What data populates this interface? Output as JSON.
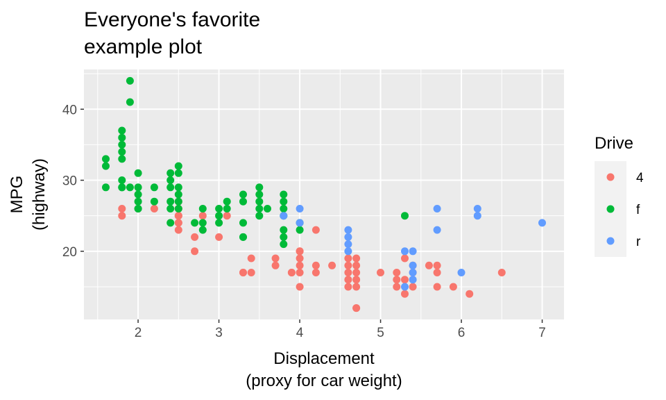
{
  "chart_data": {
    "type": "scatter",
    "title": [
      "Everyone's favorite",
      "example plot"
    ],
    "xlabel": [
      "Displacement",
      "(proxy for car weight)"
    ],
    "ylabel": [
      "MPG",
      "(highway)"
    ],
    "xlim": [
      1.33,
      7.27
    ],
    "ylim": [
      10.4,
      45.6
    ],
    "x_ticks": [
      2,
      3,
      4,
      5,
      6,
      7
    ],
    "x_tick_labels": [
      "2",
      "3",
      "4",
      "5",
      "6",
      "7"
    ],
    "y_ticks": [
      20,
      30,
      40
    ],
    "y_tick_labels": [
      "20",
      "30",
      "40"
    ],
    "grid": true,
    "legend": {
      "title": "Drive",
      "position": "right"
    },
    "series": [
      {
        "name": "4",
        "color": "#F8766D",
        "points": [
          [
            1.8,
            26
          ],
          [
            1.8,
            25
          ],
          [
            2.2,
            26
          ],
          [
            2.5,
            27
          ],
          [
            2.5,
            26
          ],
          [
            2.5,
            25
          ],
          [
            2.5,
            24
          ],
          [
            2.5,
            23
          ],
          [
            2.5,
            26
          ],
          [
            2.5,
            25
          ],
          [
            2.5,
            24
          ],
          [
            2.7,
            22
          ],
          [
            2.7,
            20
          ],
          [
            2.8,
            25
          ],
          [
            3.0,
            22
          ],
          [
            3.1,
            25
          ],
          [
            3.3,
            17
          ],
          [
            3.3,
            17
          ],
          [
            3.4,
            19
          ],
          [
            3.4,
            17
          ],
          [
            3.7,
            19
          ],
          [
            3.7,
            18
          ],
          [
            3.9,
            17
          ],
          [
            3.9,
            17
          ],
          [
            4.0,
            20
          ],
          [
            4.0,
            19
          ],
          [
            4.0,
            18
          ],
          [
            4.0,
            17
          ],
          [
            4.0,
            15
          ],
          [
            4.0,
            20
          ],
          [
            4.2,
            23
          ],
          [
            4.2,
            18
          ],
          [
            4.2,
            17
          ],
          [
            4.4,
            18
          ],
          [
            4.6,
            19
          ],
          [
            4.6,
            18
          ],
          [
            4.6,
            17
          ],
          [
            4.6,
            16
          ],
          [
            4.6,
            15
          ],
          [
            4.7,
            17
          ],
          [
            4.7,
            16
          ],
          [
            4.7,
            15
          ],
          [
            4.7,
            12
          ],
          [
            4.7,
            12
          ],
          [
            4.7,
            19
          ],
          [
            4.7,
            18
          ],
          [
            5.0,
            17
          ],
          [
            5.2,
            17
          ],
          [
            5.2,
            16
          ],
          [
            5.2,
            15
          ],
          [
            5.3,
            19
          ],
          [
            5.3,
            16
          ],
          [
            5.3,
            14
          ],
          [
            5.4,
            15
          ],
          [
            5.4,
            17
          ],
          [
            5.4,
            18
          ],
          [
            5.6,
            18
          ],
          [
            5.7,
            18
          ],
          [
            5.7,
            17
          ],
          [
            5.7,
            15
          ],
          [
            5.9,
            15
          ],
          [
            6.1,
            14
          ],
          [
            6.5,
            17
          ]
        ]
      },
      {
        "name": "f",
        "color": "#00BA38",
        "points": [
          [
            1.6,
            33
          ],
          [
            1.6,
            32
          ],
          [
            1.6,
            29
          ],
          [
            1.8,
            37
          ],
          [
            1.8,
            36
          ],
          [
            1.8,
            35
          ],
          [
            1.8,
            34
          ],
          [
            1.8,
            33
          ],
          [
            1.8,
            30
          ],
          [
            1.8,
            29
          ],
          [
            1.8,
            29
          ],
          [
            1.9,
            44
          ],
          [
            1.9,
            41
          ],
          [
            1.9,
            29
          ],
          [
            2.0,
            31
          ],
          [
            2.0,
            29
          ],
          [
            2.0,
            28
          ],
          [
            2.0,
            27
          ],
          [
            2.0,
            26
          ],
          [
            2.0,
            26
          ],
          [
            2.2,
            29
          ],
          [
            2.2,
            27
          ],
          [
            2.4,
            31
          ],
          [
            2.4,
            30
          ],
          [
            2.4,
            29
          ],
          [
            2.4,
            27
          ],
          [
            2.4,
            26
          ],
          [
            2.4,
            24
          ],
          [
            2.5,
            32
          ],
          [
            2.5,
            31
          ],
          [
            2.5,
            29
          ],
          [
            2.5,
            28
          ],
          [
            2.5,
            27
          ],
          [
            2.5,
            26
          ],
          [
            2.7,
            24
          ],
          [
            2.8,
            26
          ],
          [
            2.8,
            24
          ],
          [
            2.8,
            23
          ],
          [
            3.0,
            26
          ],
          [
            3.0,
            25
          ],
          [
            3.0,
            24
          ],
          [
            3.1,
            27
          ],
          [
            3.1,
            26
          ],
          [
            3.3,
            28
          ],
          [
            3.3,
            27
          ],
          [
            3.3,
            24
          ],
          [
            3.3,
            22
          ],
          [
            3.3,
            22
          ],
          [
            3.5,
            29
          ],
          [
            3.5,
            28
          ],
          [
            3.5,
            27
          ],
          [
            3.5,
            26
          ],
          [
            3.5,
            25
          ],
          [
            3.6,
            26
          ],
          [
            3.8,
            28
          ],
          [
            3.8,
            27
          ],
          [
            3.8,
            26
          ],
          [
            3.8,
            25
          ],
          [
            3.8,
            23
          ],
          [
            3.8,
            22
          ],
          [
            3.8,
            21
          ],
          [
            4.0,
            24
          ],
          [
            4.0,
            23
          ],
          [
            5.3,
            25
          ]
        ]
      },
      {
        "name": "r",
        "color": "#619CFF",
        "points": [
          [
            3.8,
            25
          ],
          [
            4.0,
            26
          ],
          [
            4.0,
            24
          ],
          [
            4.6,
            23
          ],
          [
            4.6,
            22
          ],
          [
            4.6,
            21
          ],
          [
            4.6,
            20
          ],
          [
            5.3,
            20
          ],
          [
            5.3,
            15
          ],
          [
            5.4,
            20
          ],
          [
            5.4,
            18
          ],
          [
            5.4,
            17
          ],
          [
            5.4,
            16
          ],
          [
            5.7,
            26
          ],
          [
            5.7,
            23
          ],
          [
            6.0,
            17
          ],
          [
            6.2,
            26
          ],
          [
            6.2,
            25
          ],
          [
            7.0,
            24
          ]
        ]
      }
    ]
  }
}
